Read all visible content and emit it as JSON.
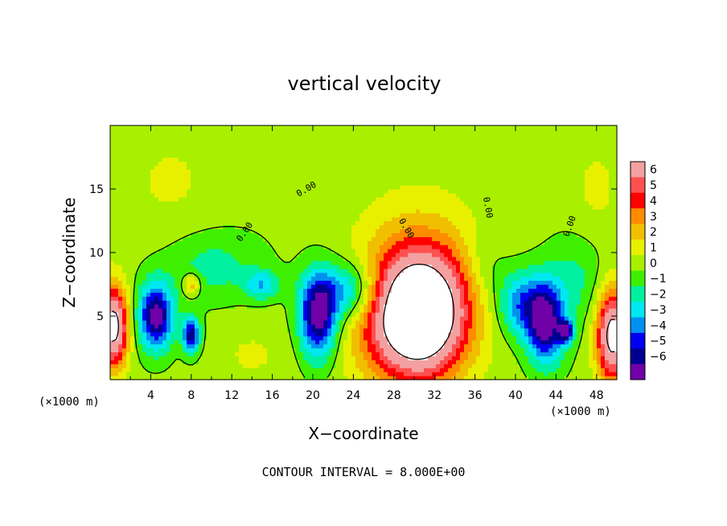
{
  "chart_data": {
    "type": "heatmap",
    "title": "vertical velocity",
    "xlabel": "X−coordinate",
    "ylabel": "Z−coordinate",
    "x_unit_left": "(×1000 m)",
    "x_unit_right": "(×1000 m)",
    "xlim": [
      0,
      50
    ],
    "ylim": [
      0,
      20
    ],
    "x_ticks": [
      4,
      8,
      12,
      16,
      20,
      24,
      28,
      32,
      36,
      40,
      44,
      48
    ],
    "y_ticks": [
      5,
      10,
      15
    ],
    "colorbar": {
      "levels": [
        6,
        5,
        4,
        3,
        2,
        1,
        0,
        -1,
        -2,
        -3,
        -4,
        -5,
        -6
      ],
      "labels": [
        "6",
        "5",
        "4",
        "3",
        "2",
        "1",
        "0",
        "−1",
        "−2",
        "−3",
        "−4",
        "−5",
        "−6"
      ],
      "colors": [
        "#f4a0a0",
        "#ff5050",
        "#ff0000",
        "#ff8c00",
        "#f0c000",
        "#e8f000",
        "#a8f000",
        "#3ef000",
        "#00f0a0",
        "#00e8f0",
        "#0090f0",
        "#0000f0",
        "#000090",
        "#7000a8"
      ]
    },
    "contour_label": "0.00",
    "contour_interval_text": "CONTOUR INTERVAL = 8.000E+00",
    "field": {
      "background": 0.3,
      "features": [
        {
          "x": 0.3,
          "z": 4.2,
          "sx": 1.0,
          "sz": 2.2,
          "value": 9
        },
        {
          "x": 30.5,
          "z": 5.0,
          "sx": 3.0,
          "sz": 3.2,
          "value": 11
        },
        {
          "x": 30.5,
          "z": 7.5,
          "sx": 4.5,
          "sz": 4.5,
          "value": 3
        },
        {
          "x": 49.6,
          "z": 3.5,
          "sx": 1.1,
          "sz": 2.5,
          "value": 9
        },
        {
          "x": 4.5,
          "z": 5.0,
          "sx": 1.2,
          "sz": 1.8,
          "value": -7
        },
        {
          "x": 8.0,
          "z": 3.5,
          "sx": 0.6,
          "sz": 1.0,
          "value": -6
        },
        {
          "x": 8.0,
          "z": 7.5,
          "sx": 0.6,
          "sz": 0.6,
          "value": 3
        },
        {
          "x": 20.5,
          "z": 5.0,
          "sx": 1.3,
          "sz": 2.3,
          "value": -7
        },
        {
          "x": 23.5,
          "z": 7.0,
          "sx": 2.2,
          "sz": 1.6,
          "value": -4
        },
        {
          "x": 15.0,
          "z": 7.5,
          "sx": 1.2,
          "sz": 0.8,
          "value": -3
        },
        {
          "x": 43.0,
          "z": 4.5,
          "sx": 1.3,
          "sz": 2.2,
          "value": -7
        },
        {
          "x": 40.5,
          "z": 6.0,
          "sx": 1.6,
          "sz": 1.8,
          "value": -4
        },
        {
          "x": 45.0,
          "z": 3.8,
          "sx": 0.5,
          "sz": 0.6,
          "value": -6
        },
        {
          "x": 10.0,
          "z": 9.0,
          "sx": 3.5,
          "sz": 2.0,
          "value": -1.8
        },
        {
          "x": 37.0,
          "z": 9.0,
          "sx": 1.5,
          "sz": 2.0,
          "value": -1.2
        },
        {
          "x": 46.0,
          "z": 8.0,
          "sx": 2.0,
          "sz": 2.5,
          "value": -1.5
        },
        {
          "x": 26.0,
          "z": 3.0,
          "sx": 2.5,
          "sz": 3.0,
          "value": 1.0
        },
        {
          "x": 14.0,
          "z": 2.0,
          "sx": 3.0,
          "sz": 2.0,
          "value": 0.8
        },
        {
          "x": 6.0,
          "z": 15.5,
          "sx": 4.0,
          "sz": 4.0,
          "value": 0.8
        },
        {
          "x": 48.0,
          "z": 15.0,
          "sx": 2.0,
          "sz": 3.0,
          "value": 0.9
        }
      ]
    }
  }
}
